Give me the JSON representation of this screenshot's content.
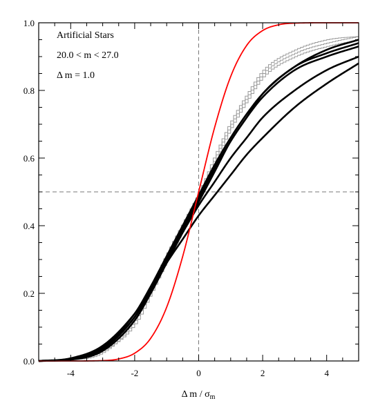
{
  "chart_data": {
    "type": "line",
    "xlabel": "Δ m / σ",
    "xlabel_subscript": "m",
    "xlim": [
      -5,
      5
    ],
    "ylim": [
      0,
      1
    ],
    "x_ticks": [
      -4,
      -2,
      0,
      2,
      4
    ],
    "y_ticks": [
      0.0,
      0.2,
      0.4,
      0.6,
      0.8,
      1.0
    ],
    "x_tick_labels": [
      "-4",
      "-2",
      "0",
      "2",
      "4"
    ],
    "y_tick_labels": [
      "0.0",
      "0.2",
      "0.4",
      "0.6",
      "0.8",
      "1.0"
    ],
    "annotations": [
      "Artificial Stars",
      "20.0 < m < 27.0",
      "Δ m = 1.0"
    ],
    "reference_lines": {
      "x": 0,
      "y": 0.5
    },
    "grid": false,
    "colors": {
      "reference": "#ff0000",
      "data": "#000000",
      "step": "#999999",
      "dashed": "#777777"
    },
    "series": [
      {
        "style": "reference",
        "x": [
          -5,
          -4,
          -3,
          -2.5,
          -2,
          -1.5,
          -1,
          -0.5,
          0,
          0.5,
          1,
          1.5,
          2,
          2.5,
          3,
          4,
          5
        ],
        "y": [
          0.0,
          0.0,
          0.001,
          0.006,
          0.023,
          0.067,
          0.159,
          0.309,
          0.5,
          0.691,
          0.841,
          0.933,
          0.977,
          0.994,
          0.999,
          1.0,
          1.0
        ]
      },
      {
        "style": "thick",
        "x": [
          -5,
          -4,
          -3,
          -2,
          -1.5,
          -1,
          -0.5,
          0,
          0.5,
          1,
          1.5,
          2,
          3,
          4,
          5
        ],
        "y": [
          0.0,
          0.004,
          0.03,
          0.12,
          0.2,
          0.29,
          0.38,
          0.47,
          0.56,
          0.65,
          0.72,
          0.79,
          0.87,
          0.92,
          0.95
        ]
      },
      {
        "style": "thick",
        "x": [
          -5,
          -4,
          -3,
          -2,
          -1.5,
          -1,
          -0.5,
          0,
          0.5,
          1,
          1.5,
          2,
          3,
          4,
          5
        ],
        "y": [
          0.0,
          0.006,
          0.04,
          0.14,
          0.22,
          0.31,
          0.4,
          0.49,
          0.58,
          0.66,
          0.73,
          0.79,
          0.87,
          0.91,
          0.94
        ]
      },
      {
        "style": "thick",
        "x": [
          -5,
          -4,
          -3,
          -2,
          -1.5,
          -1,
          -0.5,
          0,
          0.5,
          1,
          1.5,
          2,
          3,
          4,
          5
        ],
        "y": [
          0.0,
          0.005,
          0.035,
          0.13,
          0.21,
          0.3,
          0.39,
          0.48,
          0.57,
          0.65,
          0.72,
          0.78,
          0.86,
          0.9,
          0.93
        ]
      },
      {
        "style": "thick",
        "x": [
          -5,
          -4,
          -3,
          -2,
          -1.5,
          -1,
          -0.5,
          0,
          0.5,
          1,
          1.5,
          2,
          3,
          4,
          5
        ],
        "y": [
          0.0,
          0.006,
          0.04,
          0.13,
          0.21,
          0.3,
          0.38,
          0.46,
          0.53,
          0.6,
          0.66,
          0.72,
          0.8,
          0.86,
          0.9
        ]
      },
      {
        "style": "thick",
        "x": [
          -5,
          -4,
          -3,
          -2,
          -1.5,
          -1,
          -0.5,
          0,
          0.5,
          1,
          1.5,
          2,
          3,
          4,
          5
        ],
        "y": [
          0.0,
          0.008,
          0.045,
          0.14,
          0.21,
          0.29,
          0.36,
          0.43,
          0.49,
          0.55,
          0.61,
          0.66,
          0.75,
          0.82,
          0.88
        ]
      },
      {
        "style": "step",
        "x": [
          -5,
          -4,
          -3,
          -2,
          -1.5,
          -1,
          -0.5,
          0,
          0.5,
          1,
          1.5,
          2,
          3,
          4,
          5
        ],
        "y": [
          0.0,
          0.003,
          0.025,
          0.12,
          0.21,
          0.31,
          0.4,
          0.49,
          0.6,
          0.7,
          0.78,
          0.85,
          0.91,
          0.94,
          0.96
        ]
      },
      {
        "style": "step",
        "x": [
          -5,
          -4,
          -3,
          -2,
          -1.5,
          -1,
          -0.5,
          0,
          0.5,
          1,
          1.5,
          2,
          3,
          4,
          5
        ],
        "y": [
          0.0,
          0.005,
          0.035,
          0.13,
          0.22,
          0.32,
          0.41,
          0.5,
          0.61,
          0.71,
          0.79,
          0.86,
          0.92,
          0.95,
          0.96
        ]
      },
      {
        "style": "step",
        "x": [
          -5,
          -4,
          -3,
          -2,
          -1.5,
          -1,
          -0.5,
          0,
          0.5,
          1,
          1.5,
          2,
          3,
          4,
          5
        ],
        "y": [
          0.0,
          0.004,
          0.03,
          0.11,
          0.2,
          0.3,
          0.39,
          0.48,
          0.59,
          0.69,
          0.77,
          0.84,
          0.9,
          0.93,
          0.95
        ]
      }
    ]
  }
}
